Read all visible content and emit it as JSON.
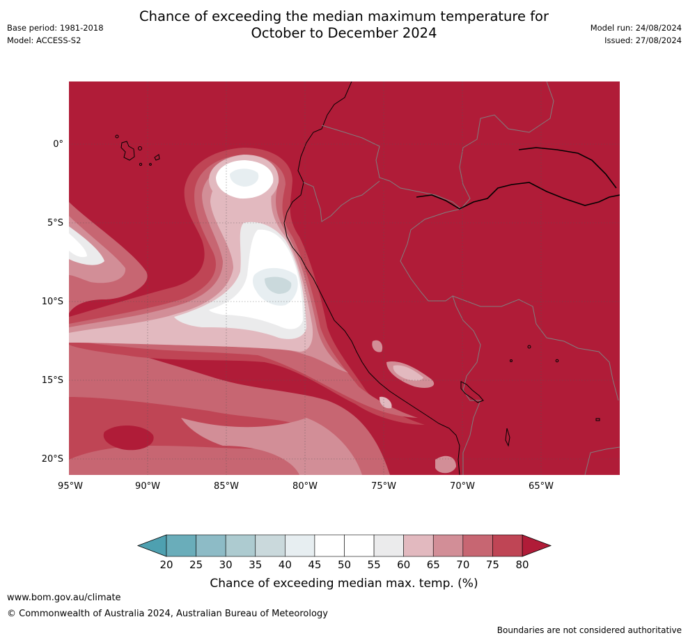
{
  "title_line1": "Chance of exceeding the median maximum temperature for",
  "title_line2": "October to December 2024",
  "base_period": "Base period: 1981-2018",
  "model": "Model: ACCESS-S2",
  "model_run": "Model run: 24/08/2024",
  "issued": "Issued: 27/08/2024",
  "lat_labels": [
    "0°",
    "5°S",
    "10°S",
    "15°S",
    "20°S"
  ],
  "lon_labels": [
    "95°W",
    "90°W",
    "85°W",
    "80°W",
    "75°W",
    "70°W",
    "65°W"
  ],
  "colorbar": {
    "ticks": [
      "20",
      "25",
      "30",
      "35",
      "40",
      "45",
      "50",
      "55",
      "60",
      "65",
      "70",
      "75",
      "80"
    ],
    "colors": [
      "#6aadba",
      "#8dbbc6",
      "#adcbd0",
      "#cad9dc",
      "#e7eef1",
      "#ffffff",
      "#ffffff",
      "#ebebec",
      "#e2b9bf",
      "#d28e97",
      "#c76672",
      "#bf4555"
    ],
    "low_color": "#4ea0b0",
    "high_color": "#b01c38",
    "label": "Chance of exceeding median max. temp. (%)"
  },
  "website": "www.bom.gov.au/climate",
  "copyright": "© Commonwealth of Australia 2024, Australian Bureau of Meteorology",
  "disclaimer": "Boundaries are not considered authoritative"
}
